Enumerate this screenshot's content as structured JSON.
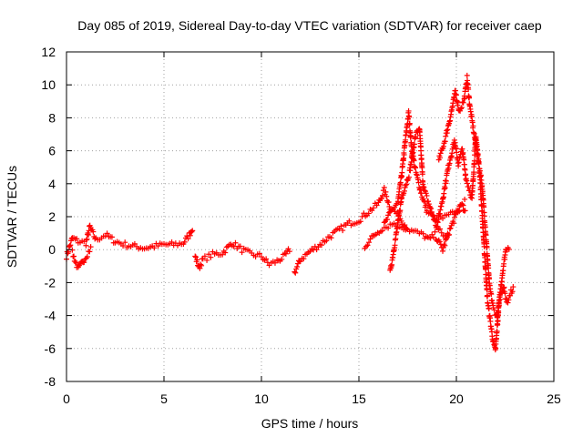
{
  "chart_data": {
    "type": "scatter",
    "title": "Day 085 of 2019, Sidereal Day-to-day VTEC variation (SDTVAR) for receiver caep",
    "xlabel": "GPS time / hours",
    "ylabel": "SDTVAR / TECUs",
    "xlim": [
      0,
      25
    ],
    "ylim": [
      -8,
      12
    ],
    "x_ticks": [
      "0",
      "5",
      "10",
      "15",
      "20",
      "25"
    ],
    "y_ticks": [
      "-8",
      "-6",
      "-4",
      "-2",
      "0",
      "2",
      "4",
      "6",
      "8",
      "10",
      "12"
    ],
    "grid": true,
    "marker": "+",
    "color": "#ff0000",
    "series": [
      {
        "name": "SDTVAR",
        "track_knots": [
          [
            [
              0.0,
              -0.4
            ],
            [
              0.3,
              0.7
            ],
            [
              0.6,
              0.5
            ],
            [
              1.0,
              0.4
            ],
            [
              1.2,
              1.4
            ],
            [
              1.5,
              0.6
            ],
            [
              2.0,
              0.9
            ],
            [
              2.5,
              0.5
            ],
            [
              3.0,
              0.3
            ],
            [
              3.5,
              0.2
            ],
            [
              4.0,
              0.1
            ],
            [
              4.5,
              0.2
            ],
            [
              5.0,
              0.3
            ],
            [
              5.5,
              0.3
            ],
            [
              6.0,
              0.4
            ],
            [
              6.3,
              0.9
            ],
            [
              6.5,
              1.4
            ]
          ],
          [
            [
              0.3,
              -0.2
            ],
            [
              0.6,
              -1.2
            ],
            [
              0.9,
              -0.6
            ],
            [
              1.3,
              0.2
            ]
          ],
          [
            [
              6.6,
              -0.4
            ],
            [
              6.8,
              -1.1
            ],
            [
              7.0,
              -0.6
            ],
            [
              7.5,
              -0.3
            ],
            [
              8.0,
              -0.2
            ],
            [
              8.5,
              0.4
            ],
            [
              9.0,
              0.0
            ],
            [
              9.5,
              -0.3
            ],
            [
              10.0,
              -0.4
            ],
            [
              10.4,
              -0.9
            ],
            [
              10.8,
              -0.7
            ],
            [
              11.2,
              -0.4
            ],
            [
              11.5,
              0.1
            ]
          ],
          [
            [
              11.7,
              -1.4
            ],
            [
              12.0,
              -0.6
            ],
            [
              12.5,
              -0.1
            ],
            [
              13.0,
              0.3
            ],
            [
              13.5,
              0.8
            ],
            [
              14.0,
              1.2
            ],
            [
              14.5,
              1.6
            ],
            [
              15.0,
              1.8
            ],
            [
              15.5,
              2.3
            ],
            [
              16.0,
              2.8
            ],
            [
              16.3,
              3.6
            ],
            [
              16.6,
              2.6
            ],
            [
              17.0,
              2.1
            ],
            [
              17.3,
              1.6
            ],
            [
              17.5,
              1.3
            ]
          ],
          [
            [
              16.3,
              1.5
            ],
            [
              16.6,
              2.2
            ],
            [
              17.0,
              2.9
            ],
            [
              17.2,
              4.6
            ],
            [
              17.4,
              6.8
            ],
            [
              17.55,
              8.3
            ],
            [
              17.7,
              6.2
            ],
            [
              17.9,
              4.8
            ],
            [
              18.2,
              3.4
            ],
            [
              18.5,
              2.3
            ],
            [
              19.0,
              1.8
            ],
            [
              19.5,
              2.0
            ],
            [
              20.0,
              2.3
            ],
            [
              20.3,
              2.6
            ],
            [
              20.5,
              2.4
            ]
          ],
          [
            [
              16.6,
              -1.4
            ],
            [
              16.9,
              0.8
            ],
            [
              17.2,
              3.2
            ],
            [
              17.6,
              4.7
            ],
            [
              17.9,
              6.9
            ],
            [
              18.1,
              7.4
            ],
            [
              18.3,
              3.8
            ],
            [
              18.7,
              2.4
            ],
            [
              19.0,
              1.3
            ],
            [
              19.4,
              0.8
            ],
            [
              19.7,
              0.9
            ]
          ],
          [
            [
              15.3,
              0.2
            ],
            [
              15.8,
              0.9
            ],
            [
              16.2,
              1.3
            ],
            [
              16.8,
              1.6
            ],
            [
              17.2,
              1.4
            ],
            [
              17.8,
              1.1
            ],
            [
              18.3,
              0.9
            ],
            [
              18.6,
              0.6
            ],
            [
              18.9,
              0.9
            ],
            [
              19.3,
              0.0
            ],
            [
              19.7,
              1.3
            ],
            [
              20.2,
              2.7
            ],
            [
              20.5,
              3.0
            ]
          ],
          [
            [
              19.1,
              5.4
            ],
            [
              19.4,
              6.6
            ],
            [
              19.7,
              8.1
            ],
            [
              19.95,
              9.6
            ],
            [
              20.15,
              8.4
            ],
            [
              20.4,
              9.1
            ],
            [
              20.55,
              10.4
            ],
            [
              20.7,
              8.6
            ],
            [
              20.9,
              7.1
            ],
            [
              21.1,
              5.6
            ],
            [
              21.3,
              4.1
            ],
            [
              21.5,
              1.1
            ],
            [
              21.7,
              -2.2
            ],
            [
              21.9,
              -3.6
            ],
            [
              22.1,
              -4.1
            ],
            [
              22.25,
              -2.6
            ],
            [
              22.4,
              -1.1
            ],
            [
              22.55,
              0.1
            ],
            [
              22.75,
              0.2
            ]
          ],
          [
            [
              19.0,
              1.5
            ],
            [
              19.3,
              3.1
            ],
            [
              19.6,
              5.1
            ],
            [
              19.9,
              6.6
            ],
            [
              20.1,
              5.2
            ],
            [
              20.3,
              6.1
            ],
            [
              20.5,
              4.3
            ],
            [
              20.8,
              3.1
            ],
            [
              21.0,
              6.9
            ],
            [
              21.2,
              4.6
            ],
            [
              21.4,
              0.6
            ],
            [
              21.6,
              -3.1
            ],
            [
              21.85,
              -5.3
            ],
            [
              22.0,
              -6.2
            ],
            [
              22.2,
              -3.1
            ],
            [
              22.4,
              -2.2
            ],
            [
              22.6,
              -3.2
            ],
            [
              22.8,
              -2.6
            ],
            [
              22.95,
              -2.3
            ]
          ]
        ]
      }
    ]
  }
}
